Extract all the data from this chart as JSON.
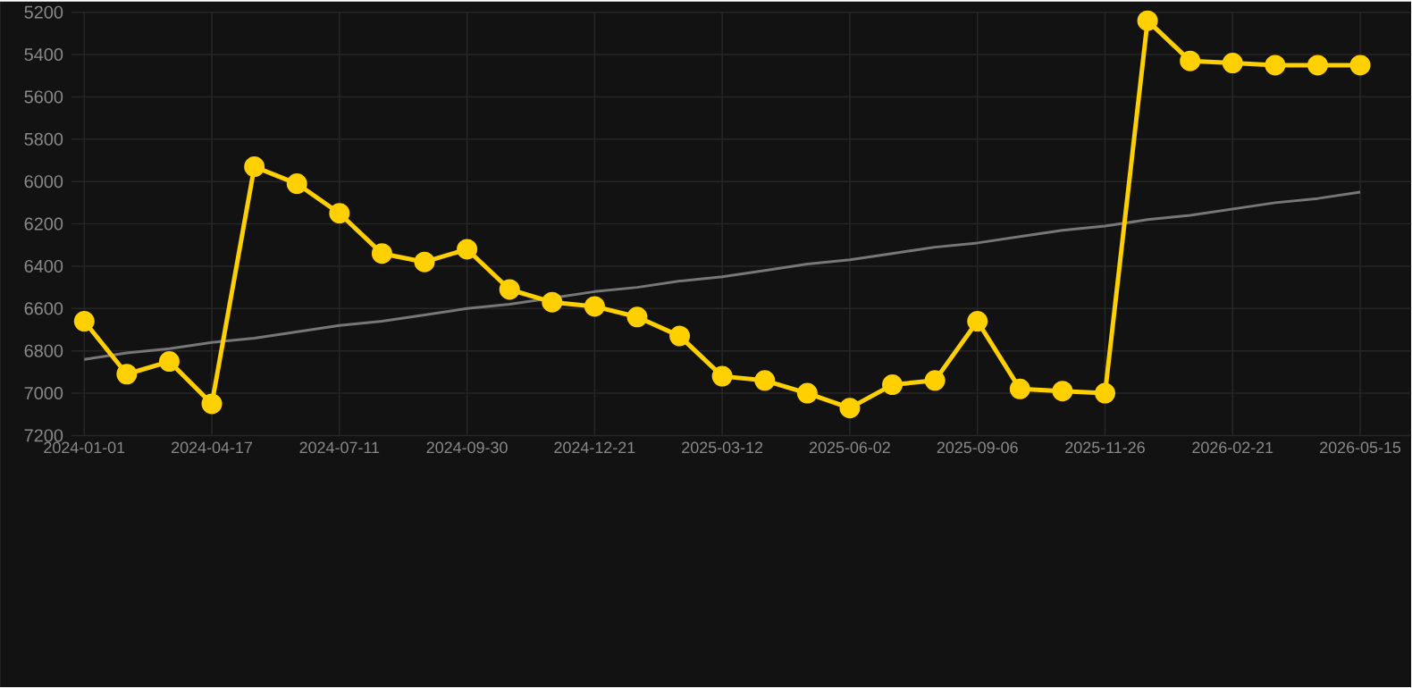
{
  "chart_data": {
    "type": "line",
    "categories": [
      "2024-01-01",
      null,
      null,
      "2024-04-17",
      null,
      null,
      "2024-07-11",
      null,
      null,
      "2024-09-30",
      null,
      null,
      "2024-12-21",
      null,
      null,
      "2025-03-12",
      null,
      null,
      "2025-06-02",
      null,
      null,
      "2025-09-06",
      null,
      null,
      "2025-11-26",
      null,
      null,
      "2026-02-21",
      null,
      null,
      "2026-05-15"
    ],
    "series": [
      {
        "color": "#ffd000",
        "marker": "circle",
        "values": [
          6660,
          6910,
          6850,
          7050,
          5930,
          6010,
          6150,
          6340,
          6380,
          6320,
          6510,
          6570,
          6590,
          6640,
          6730,
          6920,
          6940,
          7000,
          7070,
          6960,
          6940,
          6660,
          6980,
          6990,
          7000,
          5240,
          5430,
          5440,
          5450,
          5450,
          5450
        ]
      },
      {
        "type": "line",
        "color": "#777777",
        "marker": "none",
        "values": [
          6840,
          6810,
          6790,
          6760,
          6740,
          6710,
          6680,
          6660,
          6630,
          6600,
          6580,
          6550,
          6520,
          6500,
          6470,
          6450,
          6420,
          6390,
          6370,
          6340,
          6310,
          6290,
          6260,
          6230,
          6210,
          6180,
          6160,
          6130,
          6100,
          6080,
          6050
        ]
      }
    ],
    "ylim": [
      7200,
      5200
    ],
    "yticks": [
      5200,
      5400,
      5600,
      5800,
      6000,
      6200,
      6400,
      6600,
      6800,
      7000,
      7200
    ],
    "grid": true
  }
}
